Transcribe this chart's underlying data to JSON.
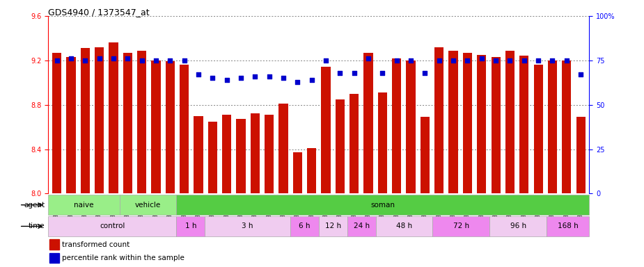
{
  "title": "GDS4940 / 1373547_at",
  "samples": [
    "GSM338857",
    "GSM338858",
    "GSM338859",
    "GSM338862",
    "GSM338864",
    "GSM338877",
    "GSM338880",
    "GSM338860",
    "GSM338861",
    "GSM338863",
    "GSM338865",
    "GSM338866",
    "GSM338867",
    "GSM338868",
    "GSM338869",
    "GSM338870",
    "GSM338871",
    "GSM338872",
    "GSM338873",
    "GSM338874",
    "GSM338875",
    "GSM338876",
    "GSM338878",
    "GSM338879",
    "GSM338881",
    "GSM338882",
    "GSM338883",
    "GSM338884",
    "GSM338885",
    "GSM338886",
    "GSM338887",
    "GSM338888",
    "GSM338889",
    "GSM338890",
    "GSM338891",
    "GSM338892",
    "GSM338893",
    "GSM338894"
  ],
  "bar_values": [
    9.27,
    9.23,
    9.31,
    9.32,
    9.36,
    9.27,
    9.29,
    9.2,
    9.19,
    9.16,
    8.7,
    8.65,
    8.71,
    8.67,
    8.72,
    8.71,
    8.81,
    8.37,
    8.41,
    9.14,
    8.85,
    8.9,
    9.27,
    8.91,
    9.22,
    9.2,
    8.69,
    9.32,
    9.29,
    9.27,
    9.25,
    9.23,
    9.29,
    9.24,
    9.16,
    9.2,
    9.2,
    8.69
  ],
  "percentile_values": [
    75,
    76,
    75,
    76,
    76,
    76,
    75,
    75,
    75,
    75,
    67,
    65,
    64,
    65,
    66,
    66,
    65,
    63,
    64,
    75,
    68,
    68,
    76,
    68,
    75,
    75,
    68,
    75,
    75,
    75,
    76,
    75,
    75,
    75,
    75,
    75,
    75,
    67
  ],
  "bar_color": "#cc1100",
  "percentile_color": "#0000cc",
  "ylim_left": [
    8.0,
    9.6
  ],
  "ylim_right": [
    0,
    100
  ],
  "yticks_left": [
    8.0,
    8.4,
    8.8,
    9.2,
    9.6
  ],
  "yticks_right": [
    0,
    25,
    50,
    75,
    100
  ],
  "background_color": "#ffffff",
  "grid_color": "#555555",
  "agent_defs": [
    {
      "label": "naive",
      "start": 0,
      "end": 5,
      "color": "#99ee88"
    },
    {
      "label": "vehicle",
      "start": 5,
      "end": 9,
      "color": "#99ee88"
    },
    {
      "label": "soman",
      "start": 9,
      "end": 38,
      "color": "#55cc44"
    }
  ],
  "time_defs": [
    {
      "label": "control",
      "start": 0,
      "end": 9,
      "color": "#f0ccf0"
    },
    {
      "label": "1 h",
      "start": 9,
      "end": 11,
      "color": "#ee88ee"
    },
    {
      "label": "3 h",
      "start": 11,
      "end": 17,
      "color": "#f0ccf0"
    },
    {
      "label": "6 h",
      "start": 17,
      "end": 19,
      "color": "#ee88ee"
    },
    {
      "label": "12 h",
      "start": 19,
      "end": 21,
      "color": "#f0ccf0"
    },
    {
      "label": "24 h",
      "start": 21,
      "end": 23,
      "color": "#ee88ee"
    },
    {
      "label": "48 h",
      "start": 23,
      "end": 27,
      "color": "#f0ccf0"
    },
    {
      "label": "72 h",
      "start": 27,
      "end": 31,
      "color": "#ee88ee"
    },
    {
      "label": "96 h",
      "start": 31,
      "end": 35,
      "color": "#f0ccf0"
    },
    {
      "label": "168 h",
      "start": 35,
      "end": 38,
      "color": "#ee88ee"
    }
  ]
}
